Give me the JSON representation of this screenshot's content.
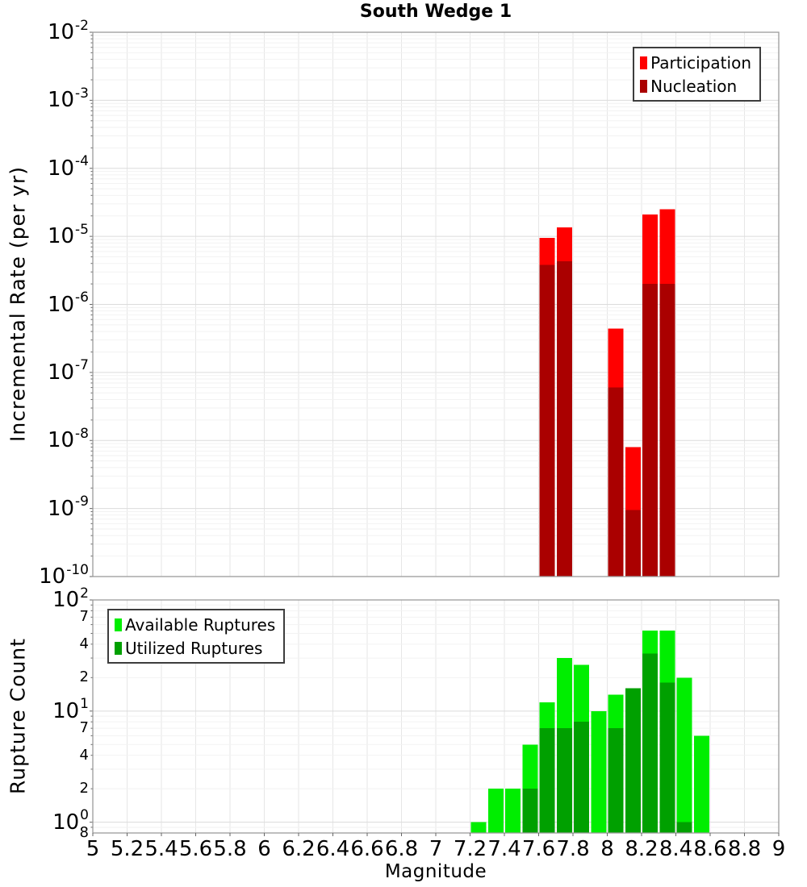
{
  "title": "South Wedge 1",
  "xlabel": "Magnitude",
  "x_ticks": [
    {
      "value": 5,
      "label": "5"
    },
    {
      "value": 5.2,
      "label": "5.2"
    },
    {
      "value": 5.4,
      "label": "5.4"
    },
    {
      "value": 5.6,
      "label": "5.6"
    },
    {
      "value": 5.8,
      "label": "5.8"
    },
    {
      "value": 6,
      "label": "6"
    },
    {
      "value": 6.2,
      "label": "6.2"
    },
    {
      "value": 6.4,
      "label": "6.4"
    },
    {
      "value": 6.6,
      "label": "6.6"
    },
    {
      "value": 6.8,
      "label": "6.8"
    },
    {
      "value": 7,
      "label": "7"
    },
    {
      "value": 7.2,
      "label": "7.2"
    },
    {
      "value": 7.4,
      "label": "7.4"
    },
    {
      "value": 7.6,
      "label": "7.6"
    },
    {
      "value": 7.8,
      "label": "7.8"
    },
    {
      "value": 8,
      "label": "8"
    },
    {
      "value": 8.2,
      "label": "8.2"
    },
    {
      "value": 8.4,
      "label": "8.4"
    },
    {
      "value": 8.6,
      "label": "8.6"
    },
    {
      "value": 8.8,
      "label": "8.8"
    },
    {
      "value": 9,
      "label": "9"
    }
  ],
  "y_axis_top": {
    "major_exponents": [
      -2,
      -3,
      -4,
      -5,
      -6,
      -7,
      -8,
      -9,
      -10
    ]
  },
  "y_axis_bottom": {
    "major_exponents": [
      2,
      1,
      0
    ],
    "minor_labels": [
      {
        "value": 70,
        "label": "7"
      },
      {
        "value": 40,
        "label": "4"
      },
      {
        "value": 20,
        "label": "2"
      },
      {
        "value": 7,
        "label": "7"
      },
      {
        "value": 4,
        "label": "4"
      },
      {
        "value": 2,
        "label": "2"
      },
      {
        "value": 0.8,
        "label": "8"
      }
    ]
  },
  "style_colors": {
    "grid_major": "#dcdcdc",
    "grid_minor": "#f2f2f2",
    "grid_vertical": "#e6e6e6",
    "plot_border": "#9b9b9b",
    "tick": "#666666"
  },
  "chart_data": [
    {
      "type": "bar",
      "title": "South Wedge 1",
      "xlabel": "Magnitude",
      "ylabel": "Incremental Rate (per yr)",
      "yscale": "log",
      "grid": true,
      "xlim": [
        5,
        9
      ],
      "ylim": [
        1e-10,
        0.01
      ],
      "bin_width": 0.1,
      "legend_position": "top-right",
      "categories": [
        7.65,
        7.75,
        8.05,
        8.15,
        8.25,
        8.35
      ],
      "series": [
        {
          "name": "Participation",
          "color": "#ff0000",
          "values": [
            9.5e-06,
            1.35e-05,
            4.4e-07,
            8e-09,
            2.1e-05,
            2.5e-05
          ]
        },
        {
          "name": "Nucleation",
          "color": "#aa0000",
          "values": [
            3.8e-06,
            4.3e-06,
            6e-08,
            9.5e-10,
            2e-06,
            2e-06
          ]
        }
      ]
    },
    {
      "type": "bar",
      "xlabel": "Magnitude",
      "ylabel": "Rupture Count",
      "yscale": "log",
      "grid": true,
      "xlim": [
        5,
        9
      ],
      "ylim": [
        0.8,
        100
      ],
      "bin_width": 0.1,
      "legend_position": "top-left",
      "categories": [
        7.25,
        7.35,
        7.45,
        7.55,
        7.65,
        7.75,
        7.85,
        7.95,
        8.05,
        8.15,
        8.25,
        8.35,
        8.45,
        8.55
      ],
      "series": [
        {
          "name": "Available Ruptures",
          "color": "#00ee00",
          "values": [
            1,
            2,
            2,
            5,
            12,
            30,
            26,
            10,
            14,
            16,
            53,
            53,
            20,
            6
          ]
        },
        {
          "name": "Utilized Ruptures",
          "color": "#00a000",
          "values": [
            0,
            0,
            0,
            2,
            7,
            7,
            8,
            0,
            7,
            16,
            33,
            18,
            1,
            0
          ]
        }
      ]
    }
  ]
}
